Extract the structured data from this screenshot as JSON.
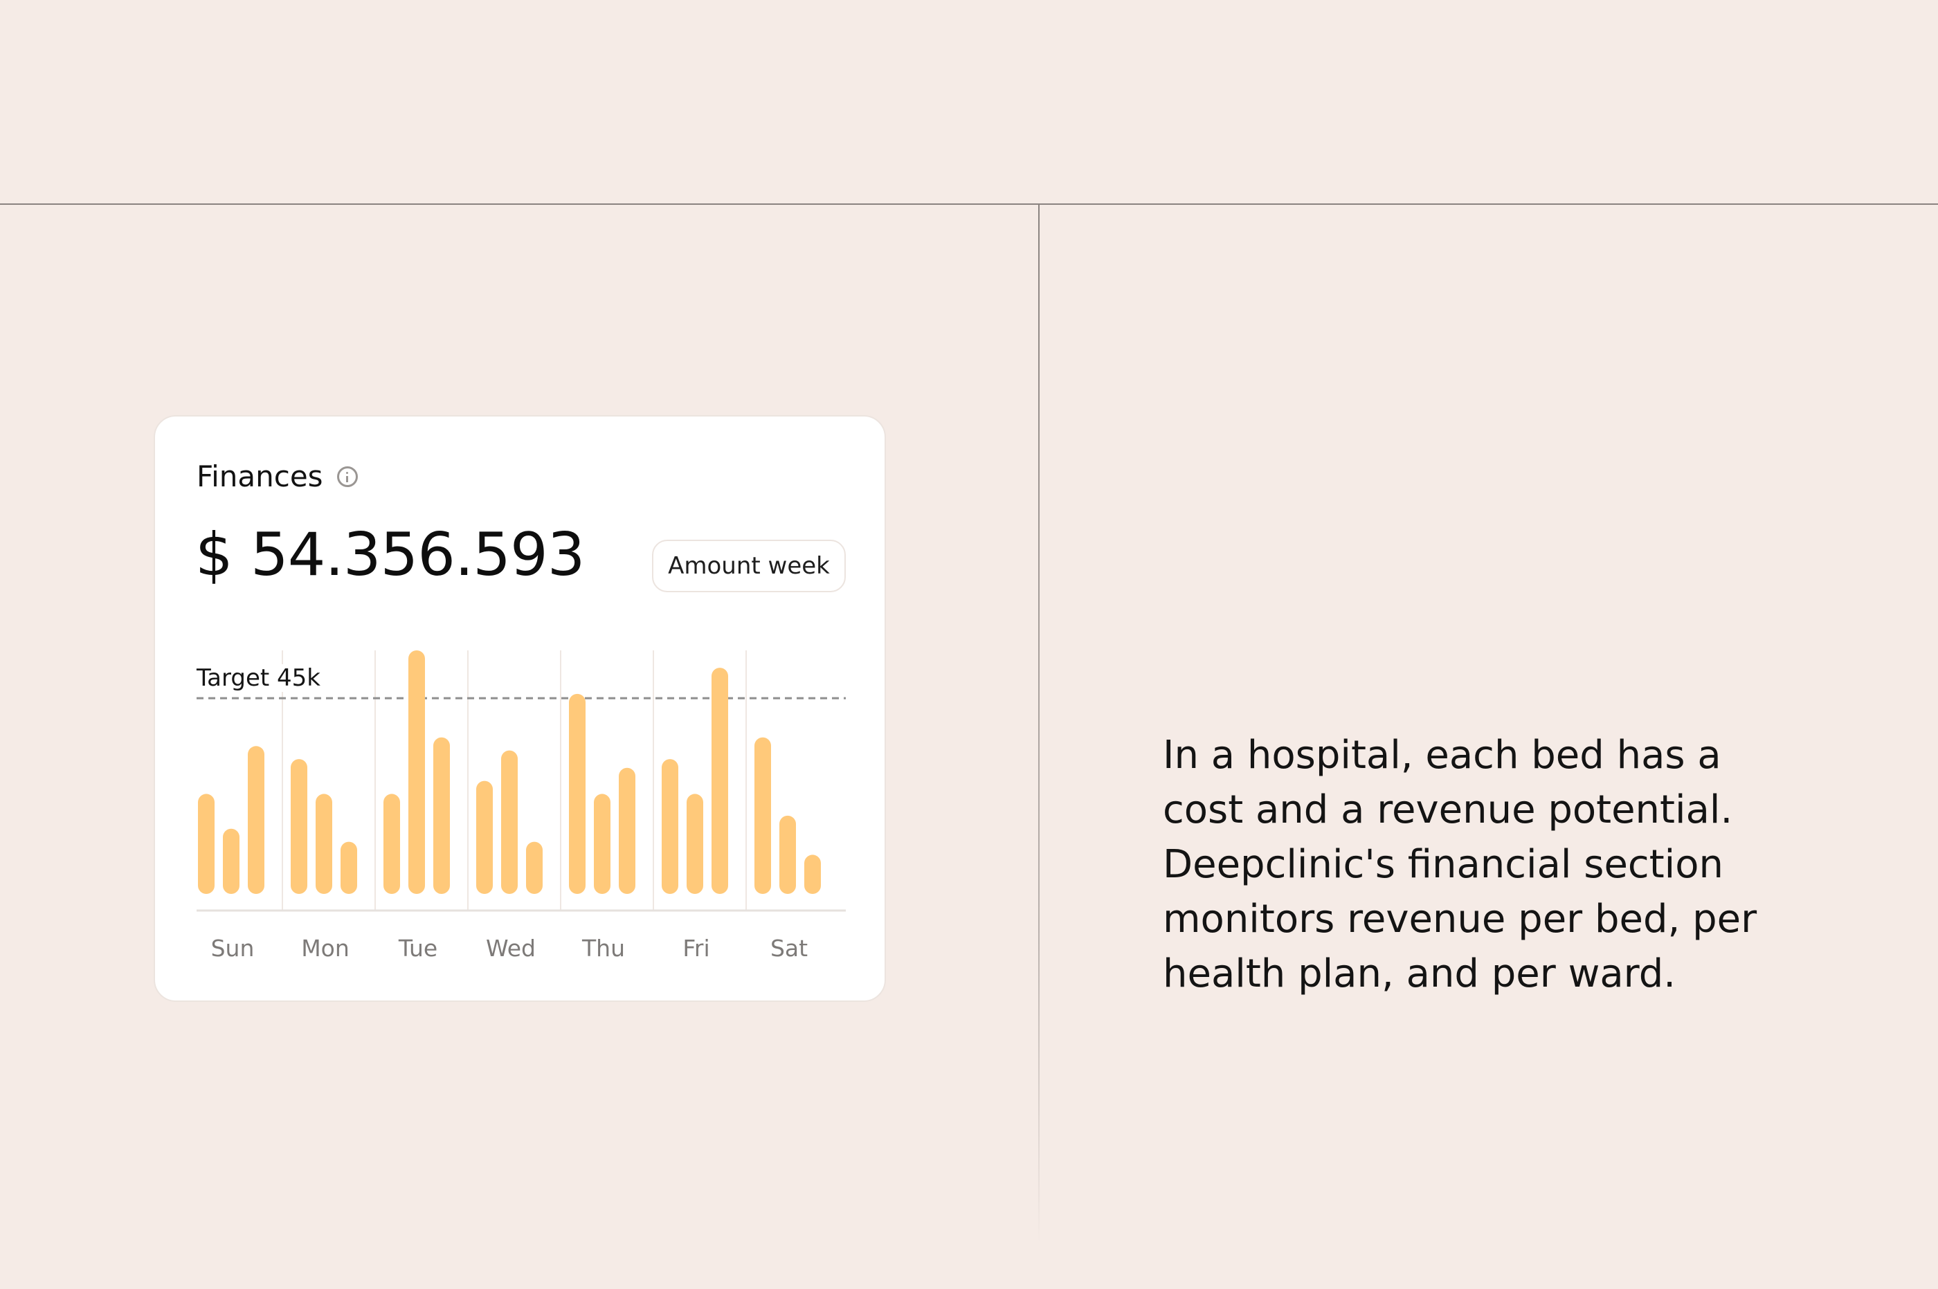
{
  "card": {
    "title": "Finances",
    "amount": "$ 54.356.593",
    "period_button_label": "Amount week",
    "target_label": "Target 45k"
  },
  "description": "In a hospital, each bed has a cost and a revenue potential. Deepclinic's financial section monitors revenue per bed, per health plan, and per ward.",
  "colors": {
    "background": "#f5ebe6",
    "card": "#ffffff",
    "bar": "#ffc97a",
    "target_line": "#8e8e8e"
  },
  "icons": {
    "title_info": "info-icon"
  },
  "chart_data": {
    "type": "bar",
    "title": "",
    "xlabel": "",
    "ylabel": "",
    "target": 45,
    "ylim": [
      0,
      56
    ],
    "categories": [
      "Sun",
      "Mon",
      "Tue",
      "Wed",
      "Thu",
      "Fri",
      "Sat"
    ],
    "series": [
      {
        "values": [
          23,
          31,
          23,
          26,
          46,
          31,
          36
        ]
      },
      {
        "values": [
          15,
          23,
          56,
          33,
          23,
          23,
          18
        ]
      },
      {
        "values": [
          34,
          12,
          36,
          12,
          29,
          52,
          9
        ]
      }
    ]
  }
}
